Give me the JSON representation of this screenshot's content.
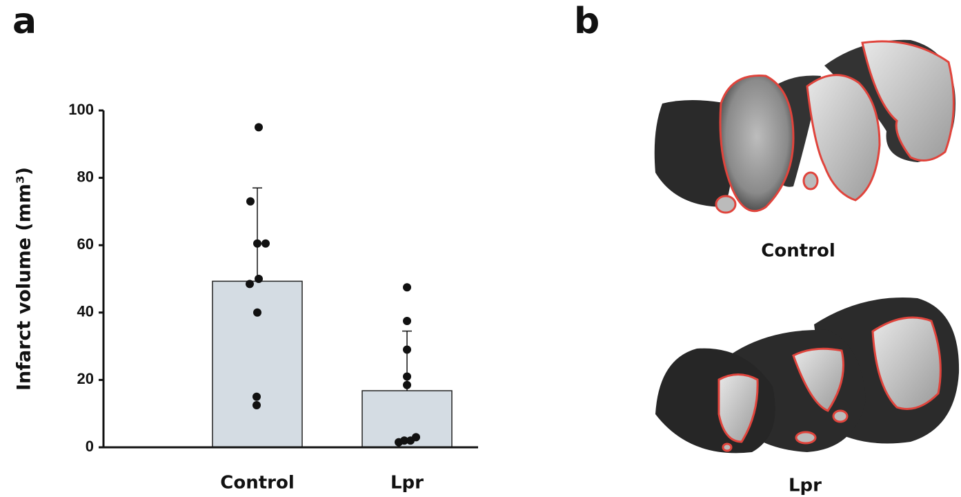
{
  "panel_labels": [
    "a",
    "b"
  ],
  "chart_data": {
    "type": "bar",
    "y_label": "Infarct volume (mm³)",
    "categories": [
      "Control",
      "Lpr"
    ],
    "values": [
      49.3,
      16.8
    ],
    "errors": [
      27.7,
      17.7
    ],
    "points": [
      [
        95,
        73,
        60.5,
        60.5,
        50,
        48.5,
        40,
        15,
        12.5
      ],
      [
        47.5,
        37.5,
        29,
        21,
        18.5,
        1.5,
        2,
        2,
        3
      ]
    ],
    "color": "#d4dce3",
    "ylim": [
      0,
      100
    ],
    "yticks": [
      0,
      20,
      40,
      60,
      80,
      100
    ]
  },
  "images": [
    {
      "label": "Control"
    },
    {
      "label": "Lpr"
    }
  ]
}
